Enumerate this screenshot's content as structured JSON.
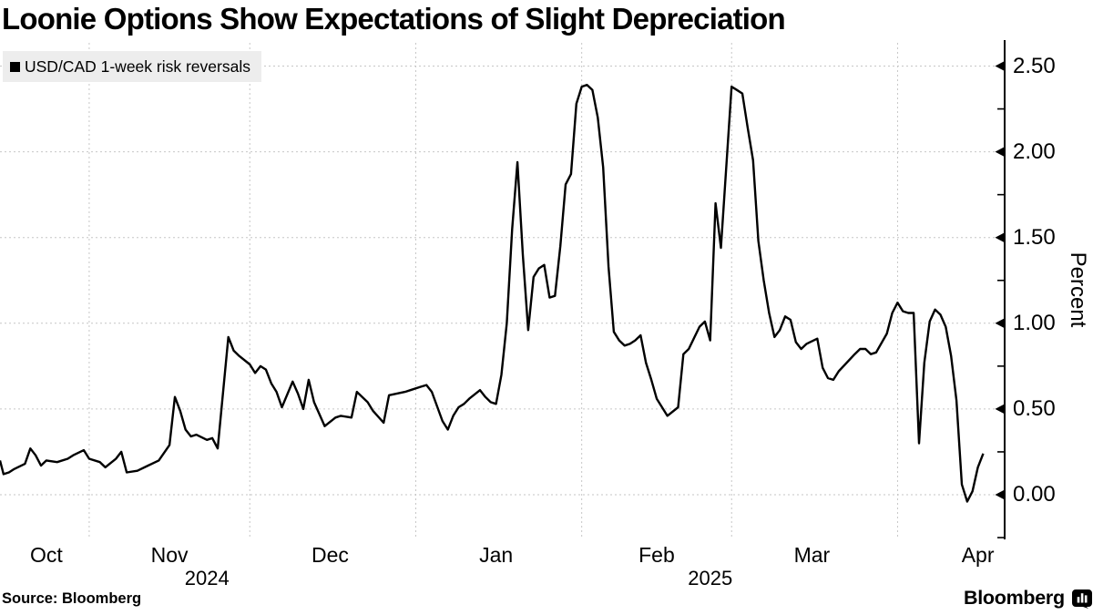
{
  "title": "Loonie Options Show Expectations of Slight Depreciation",
  "legend": {
    "swatch_color": "#000000"
  },
  "footer": {
    "source": "Source: Bloomberg",
    "brand": "Bloomberg"
  },
  "colors": {
    "line": "#000000",
    "grid": "#c6c6c6",
    "axis": "#000000",
    "legend_bg": "#ededed",
    "background": "#ffffff",
    "text": "#000000"
  },
  "chart_data": {
    "type": "line",
    "title": "Loonie Options Show Expectations of Slight Depreciation",
    "xlabel": "",
    "ylabel": "Percent",
    "grid": true,
    "legend_position": "top-left",
    "x_range": [
      "2024-10-15",
      "2025-04-21"
    ],
    "ylim": [
      -0.26,
      2.65
    ],
    "y_ticks_major": [
      {
        "label": "2.50",
        "value": 2.5
      },
      {
        "label": "2.00",
        "value": 2.0
      },
      {
        "label": "1.50",
        "value": 1.5
      },
      {
        "label": "1.00",
        "value": 1.0
      },
      {
        "label": "0.50",
        "value": 0.5
      },
      {
        "label": "0.00",
        "value": 0.0
      }
    ],
    "y_ticks_minor": [
      2.25,
      1.75,
      1.25,
      0.75,
      0.25,
      -0.25
    ],
    "x_gridline_dates": [
      "2024-11-01",
      "2024-12-01",
      "2025-01-01",
      "2025-02-01",
      "2025-03-01",
      "2025-04-01"
    ],
    "x_month_labels": [
      {
        "label": "Oct",
        "anchor": "2024-10-24"
      },
      {
        "label": "Nov",
        "anchor": "2024-11-16"
      },
      {
        "label": "Dec",
        "anchor": "2024-12-16"
      },
      {
        "label": "Jan",
        "anchor": "2025-01-16"
      },
      {
        "label": "Feb",
        "anchor": "2025-02-15"
      },
      {
        "label": "Mar",
        "anchor": "2025-03-16"
      },
      {
        "label": "Apr",
        "anchor": "2025-04-16"
      }
    ],
    "x_year_labels": [
      {
        "label": "2024",
        "anchor": "2024-11-23"
      },
      {
        "label": "2025",
        "anchor": "2025-02-25"
      }
    ],
    "series": [
      {
        "name": "USD/CAD 1-week risk reversals",
        "color": "#000000",
        "points": [
          [
            "2024-10-15",
            0.2
          ],
          [
            "2024-10-16",
            0.12
          ],
          [
            "2024-10-17",
            0.13
          ],
          [
            "2024-10-18",
            0.15
          ],
          [
            "2024-10-20",
            0.18
          ],
          [
            "2024-10-21",
            0.27
          ],
          [
            "2024-10-22",
            0.23
          ],
          [
            "2024-10-23",
            0.17
          ],
          [
            "2024-10-24",
            0.2
          ],
          [
            "2024-10-26",
            0.19
          ],
          [
            "2024-10-28",
            0.21
          ],
          [
            "2024-10-29",
            0.23
          ],
          [
            "2024-10-31",
            0.26
          ],
          [
            "2024-11-01",
            0.21
          ],
          [
            "2024-11-03",
            0.19
          ],
          [
            "2024-11-04",
            0.16
          ],
          [
            "2024-11-06",
            0.21
          ],
          [
            "2024-11-07",
            0.25
          ],
          [
            "2024-11-08",
            0.13
          ],
          [
            "2024-11-10",
            0.14
          ],
          [
            "2024-11-12",
            0.17
          ],
          [
            "2024-11-14",
            0.2
          ],
          [
            "2024-11-16",
            0.29
          ],
          [
            "2024-11-17",
            0.57
          ],
          [
            "2024-11-18",
            0.49
          ],
          [
            "2024-11-19",
            0.38
          ],
          [
            "2024-11-20",
            0.34
          ],
          [
            "2024-11-21",
            0.35
          ],
          [
            "2024-11-23",
            0.32
          ],
          [
            "2024-11-24",
            0.33
          ],
          [
            "2024-11-25",
            0.27
          ],
          [
            "2024-11-27",
            0.92
          ],
          [
            "2024-11-28",
            0.84
          ],
          [
            "2024-11-29",
            0.81
          ],
          [
            "2024-12-01",
            0.76
          ],
          [
            "2024-12-02",
            0.71
          ],
          [
            "2024-12-03",
            0.75
          ],
          [
            "2024-12-04",
            0.73
          ],
          [
            "2024-12-05",
            0.65
          ],
          [
            "2024-12-06",
            0.6
          ],
          [
            "2024-12-07",
            0.51
          ],
          [
            "2024-12-09",
            0.66
          ],
          [
            "2024-12-10",
            0.59
          ],
          [
            "2024-12-11",
            0.5
          ],
          [
            "2024-12-12",
            0.67
          ],
          [
            "2024-12-13",
            0.54
          ],
          [
            "2024-12-15",
            0.4
          ],
          [
            "2024-12-17",
            0.45
          ],
          [
            "2024-12-18",
            0.46
          ],
          [
            "2024-12-20",
            0.45
          ],
          [
            "2024-12-21",
            0.6
          ],
          [
            "2024-12-23",
            0.54
          ],
          [
            "2024-12-24",
            0.49
          ],
          [
            "2024-12-26",
            0.42
          ],
          [
            "2024-12-27",
            0.58
          ],
          [
            "2024-12-30",
            0.6
          ],
          [
            "2024-12-31",
            0.61
          ],
          [
            "2025-01-02",
            0.63
          ],
          [
            "2025-01-03",
            0.64
          ],
          [
            "2025-01-04",
            0.6
          ],
          [
            "2025-01-06",
            0.43
          ],
          [
            "2025-01-07",
            0.38
          ],
          [
            "2025-01-08",
            0.46
          ],
          [
            "2025-01-09",
            0.51
          ],
          [
            "2025-01-10",
            0.53
          ],
          [
            "2025-01-11",
            0.56
          ],
          [
            "2025-01-13",
            0.61
          ],
          [
            "2025-01-14",
            0.57
          ],
          [
            "2025-01-15",
            0.54
          ],
          [
            "2025-01-16",
            0.53
          ],
          [
            "2025-01-17",
            0.7
          ],
          [
            "2025-01-18",
            1.0
          ],
          [
            "2025-01-19",
            1.55
          ],
          [
            "2025-01-20",
            1.94
          ],
          [
            "2025-01-21",
            1.4
          ],
          [
            "2025-01-22",
            0.96
          ],
          [
            "2025-01-23",
            1.27
          ],
          [
            "2025-01-24",
            1.32
          ],
          [
            "2025-01-25",
            1.34
          ],
          [
            "2025-01-26",
            1.15
          ],
          [
            "2025-01-27",
            1.16
          ],
          [
            "2025-01-28",
            1.45
          ],
          [
            "2025-01-29",
            1.81
          ],
          [
            "2025-01-30",
            1.87
          ],
          [
            "2025-01-31",
            2.28
          ],
          [
            "2025-02-01",
            2.38
          ],
          [
            "2025-02-02",
            2.39
          ],
          [
            "2025-02-03",
            2.36
          ],
          [
            "2025-02-04",
            2.2
          ],
          [
            "2025-02-05",
            1.91
          ],
          [
            "2025-02-06",
            1.33
          ],
          [
            "2025-02-07",
            0.95
          ],
          [
            "2025-02-08",
            0.9
          ],
          [
            "2025-02-09",
            0.87
          ],
          [
            "2025-02-10",
            0.88
          ],
          [
            "2025-02-11",
            0.9
          ],
          [
            "2025-02-12",
            0.93
          ],
          [
            "2025-02-13",
            0.77
          ],
          [
            "2025-02-14",
            0.67
          ],
          [
            "2025-02-15",
            0.56
          ],
          [
            "2025-02-17",
            0.46
          ],
          [
            "2025-02-19",
            0.51
          ],
          [
            "2025-02-20",
            0.82
          ],
          [
            "2025-02-21",
            0.85
          ],
          [
            "2025-02-23",
            0.98
          ],
          [
            "2025-02-24",
            1.01
          ],
          [
            "2025-02-25",
            0.9
          ],
          [
            "2025-02-26",
            1.7
          ],
          [
            "2025-02-27",
            1.44
          ],
          [
            "2025-03-01",
            2.38
          ],
          [
            "2025-03-02",
            2.36
          ],
          [
            "2025-03-03",
            2.34
          ],
          [
            "2025-03-04",
            2.14
          ],
          [
            "2025-03-05",
            1.95
          ],
          [
            "2025-03-06",
            1.48
          ],
          [
            "2025-03-07",
            1.25
          ],
          [
            "2025-03-08",
            1.06
          ],
          [
            "2025-03-09",
            0.92
          ],
          [
            "2025-03-10",
            0.96
          ],
          [
            "2025-03-11",
            1.04
          ],
          [
            "2025-03-12",
            1.02
          ],
          [
            "2025-03-13",
            0.89
          ],
          [
            "2025-03-14",
            0.85
          ],
          [
            "2025-03-15",
            0.88
          ],
          [
            "2025-03-17",
            0.91
          ],
          [
            "2025-03-18",
            0.74
          ],
          [
            "2025-03-19",
            0.68
          ],
          [
            "2025-03-20",
            0.67
          ],
          [
            "2025-03-21",
            0.72
          ],
          [
            "2025-03-24",
            0.82
          ],
          [
            "2025-03-25",
            0.85
          ],
          [
            "2025-03-26",
            0.85
          ],
          [
            "2025-03-27",
            0.82
          ],
          [
            "2025-03-28",
            0.83
          ],
          [
            "2025-03-30",
            0.94
          ],
          [
            "2025-03-31",
            1.06
          ],
          [
            "2025-04-01",
            1.12
          ],
          [
            "2025-04-02",
            1.07
          ],
          [
            "2025-04-03",
            1.06
          ],
          [
            "2025-04-04",
            1.06
          ],
          [
            "2025-04-05",
            0.3
          ],
          [
            "2025-04-06",
            0.77
          ],
          [
            "2025-04-07",
            1.01
          ],
          [
            "2025-04-08",
            1.08
          ],
          [
            "2025-04-09",
            1.05
          ],
          [
            "2025-04-10",
            0.98
          ],
          [
            "2025-04-11",
            0.81
          ],
          [
            "2025-04-12",
            0.55
          ],
          [
            "2025-04-13",
            0.06
          ],
          [
            "2025-04-14",
            -0.04
          ],
          [
            "2025-04-15",
            0.02
          ],
          [
            "2025-04-16",
            0.16
          ],
          [
            "2025-04-17",
            0.24
          ]
        ]
      }
    ]
  }
}
